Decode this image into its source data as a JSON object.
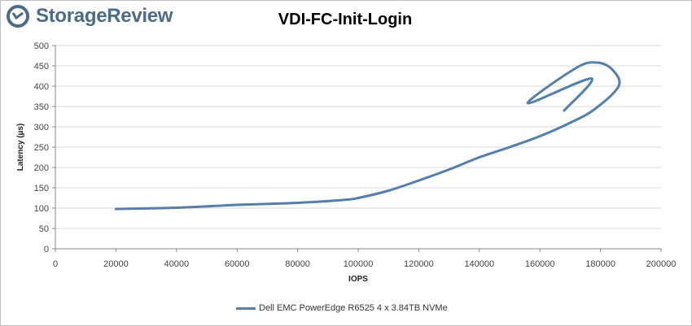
{
  "brand": {
    "name": "StorageReview",
    "color": "#4a6b8a",
    "icon": "storage-review-logo-icon"
  },
  "chart_data": {
    "type": "line",
    "title": "VDI-FC-Init-Login",
    "xlabel": "IOPS",
    "ylabel": "Latency (µs)",
    "xlim": [
      0,
      200000
    ],
    "ylim": [
      0,
      500
    ],
    "xticks": [
      "0",
      "20000",
      "40000",
      "60000",
      "80000",
      "100000",
      "120000",
      "140000",
      "160000",
      "180000",
      "200000"
    ],
    "yticks": [
      "0",
      "50",
      "100",
      "150",
      "200",
      "250",
      "300",
      "350",
      "400",
      "450",
      "500"
    ],
    "grid": true,
    "legend_position": "bottom",
    "series": [
      {
        "name": "Dell EMC PowerEdge R6525 4 x 3.84TB NVMe",
        "color": "#4f7fb4",
        "points": [
          {
            "x": 20000,
            "y": 98
          },
          {
            "x": 40000,
            "y": 101
          },
          {
            "x": 60000,
            "y": 108
          },
          {
            "x": 80000,
            "y": 113
          },
          {
            "x": 95000,
            "y": 120
          },
          {
            "x": 100000,
            "y": 125
          },
          {
            "x": 110000,
            "y": 143
          },
          {
            "x": 120000,
            "y": 168
          },
          {
            "x": 130000,
            "y": 195
          },
          {
            "x": 140000,
            "y": 225
          },
          {
            "x": 150000,
            "y": 250
          },
          {
            "x": 160000,
            "y": 277
          },
          {
            "x": 170000,
            "y": 310
          },
          {
            "x": 178000,
            "y": 343
          },
          {
            "x": 186000,
            "y": 400
          },
          {
            "x": 184000,
            "y": 440
          },
          {
            "x": 179000,
            "y": 458
          },
          {
            "x": 172000,
            "y": 445
          },
          {
            "x": 156000,
            "y": 358
          },
          {
            "x": 177000,
            "y": 419
          },
          {
            "x": 168000,
            "y": 340
          }
        ]
      }
    ]
  }
}
